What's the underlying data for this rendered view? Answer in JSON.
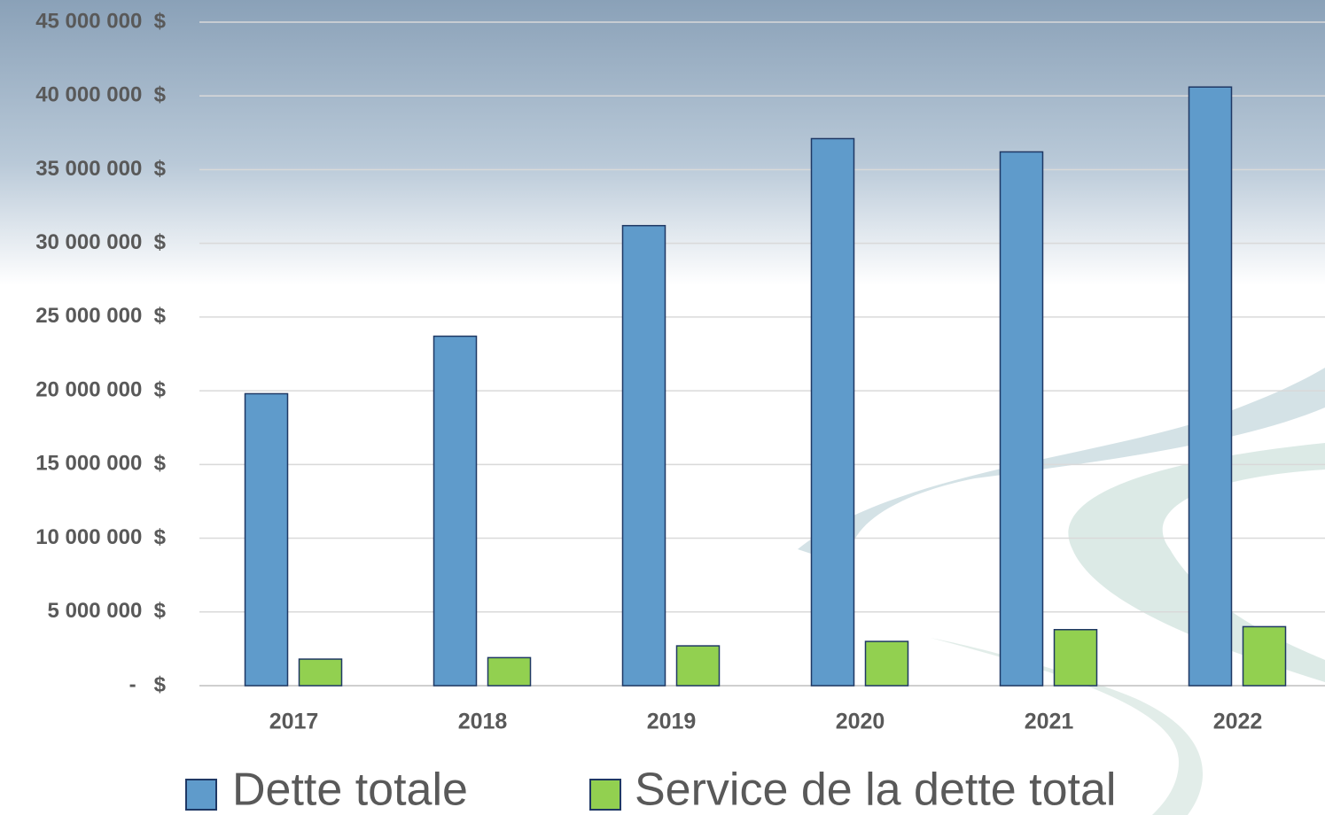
{
  "chart_data": {
    "type": "bar",
    "categories": [
      "2017",
      "2018",
      "2019",
      "2020",
      "2021",
      "2022"
    ],
    "series": [
      {
        "name": "Dette totale",
        "color": "#5f9bcb",
        "values": [
          19800000,
          23700000,
          31200000,
          37100000,
          36200000,
          40600000
        ]
      },
      {
        "name": "Service de la dette total",
        "color": "#92d050",
        "values": [
          1800000,
          1900000,
          2700000,
          3000000,
          3800000,
          4000000
        ]
      }
    ],
    "ylim": [
      0,
      45000000
    ],
    "yticks": [
      {
        "value": 0,
        "label": "-   $"
      },
      {
        "value": 5000000,
        "label": "5 000 000  $"
      },
      {
        "value": 10000000,
        "label": "10 000 000  $"
      },
      {
        "value": 15000000,
        "label": "15 000 000  $"
      },
      {
        "value": 20000000,
        "label": "20 000 000  $"
      },
      {
        "value": 25000000,
        "label": "25 000 000  $"
      },
      {
        "value": 30000000,
        "label": "30 000 000  $"
      },
      {
        "value": 35000000,
        "label": "35 000 000  $"
      },
      {
        "value": 40000000,
        "label": "40 000 000  $"
      },
      {
        "value": 45000000,
        "label": "45 000 000  $"
      }
    ],
    "grid": true
  }
}
